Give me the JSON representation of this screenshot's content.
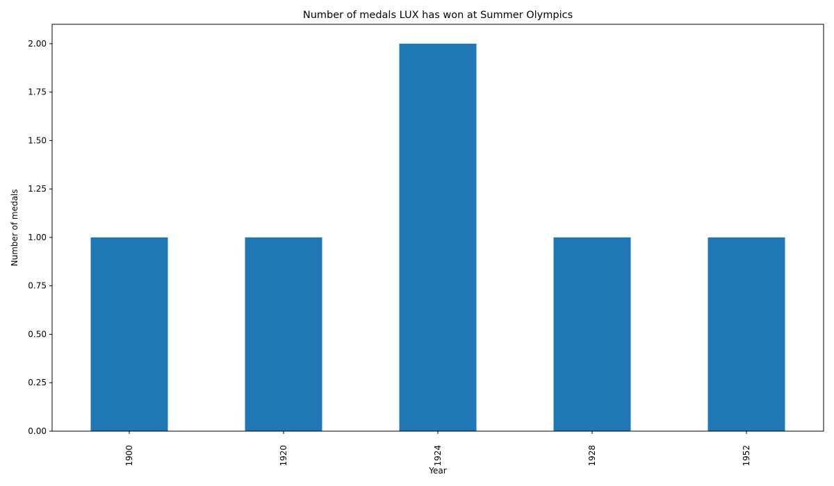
{
  "chart_data": {
    "type": "bar",
    "title": "Number of medals LUX has won at Summer Olympics",
    "xlabel": "Year",
    "ylabel": "Number of medals",
    "categories": [
      "1900",
      "1920",
      "1924",
      "1928",
      "1952"
    ],
    "values": [
      1,
      1,
      2,
      1,
      1
    ],
    "ylim": [
      0,
      2.1
    ],
    "yticks": [
      "0.00",
      "0.25",
      "0.50",
      "0.75",
      "1.00",
      "1.25",
      "1.50",
      "1.75",
      "2.00"
    ],
    "bar_color": "#1f77b4",
    "grid": false,
    "legend": false
  }
}
